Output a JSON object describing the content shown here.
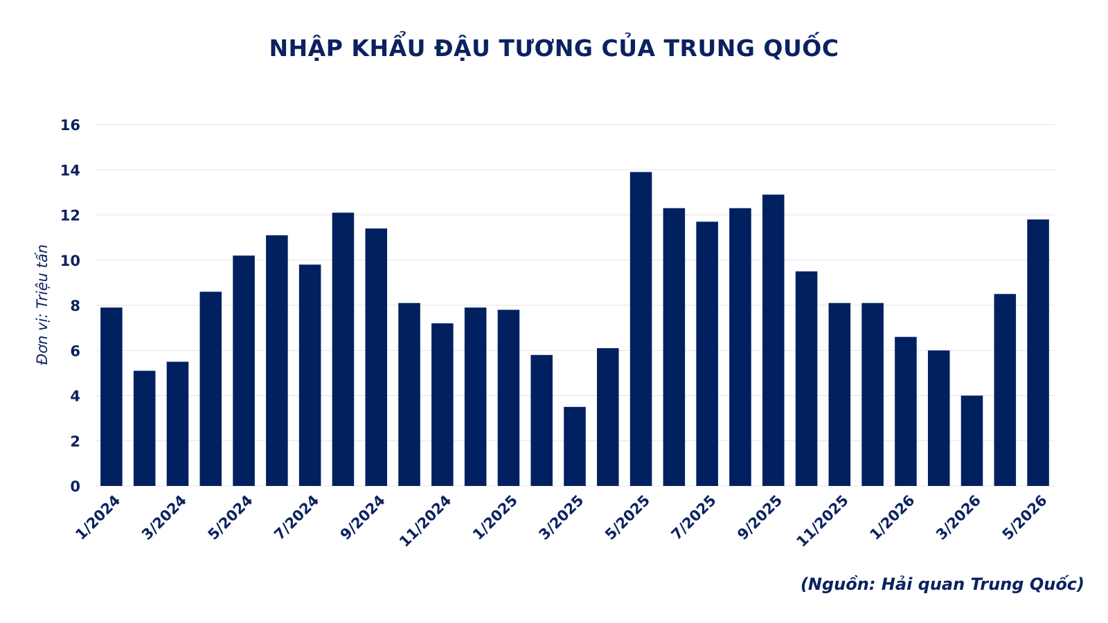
{
  "colors": {
    "bar": "#002060",
    "text": "#0b2260",
    "grid": "#e3e3e3"
  },
  "chart_data": {
    "type": "bar",
    "title": "NHẬP KHẨU ĐẬU TƯƠNG CỦA TRUNG QUỐC",
    "ylabel": "Đơn vị: Triệu tấn",
    "xlabel": "",
    "source": "(Nguồn: Hải quan Trung Quốc)",
    "ylim": [
      0,
      16
    ],
    "yticks": [
      0,
      2,
      4,
      6,
      8,
      10,
      12,
      14,
      16
    ],
    "grid": true,
    "categories": [
      "1/2024",
      "2/2024",
      "3/2024",
      "4/2024",
      "5/2024",
      "6/2024",
      "7/2024",
      "8/2024",
      "9/2024",
      "10/2024",
      "11/2024",
      "12/2024",
      "1/2025",
      "2/2025",
      "3/2025",
      "4/2025",
      "5/2025",
      "6/2025",
      "7/2025",
      "8/2025",
      "9/2025",
      "10/2025",
      "11/2025",
      "12/2025",
      "1/2026",
      "2/2026",
      "3/2026",
      "4/2026",
      "5/2026"
    ],
    "tick_labels": [
      "1/2024",
      "3/2024",
      "5/2024",
      "7/2024",
      "9/2024",
      "11/2024",
      "1/2025",
      "3/2025",
      "5/2025",
      "7/2025",
      "9/2025",
      "11/2025",
      "1/2026",
      "3/2026",
      "5/2026"
    ],
    "values": [
      7.9,
      5.1,
      5.5,
      8.6,
      10.2,
      11.1,
      9.8,
      12.1,
      11.4,
      8.1,
      7.2,
      7.9,
      7.8,
      5.8,
      3.5,
      6.1,
      13.9,
      12.3,
      11.7,
      12.3,
      12.9,
      9.5,
      8.1,
      8.1,
      6.6,
      6.0,
      4.0,
      8.5,
      11.8
    ]
  }
}
